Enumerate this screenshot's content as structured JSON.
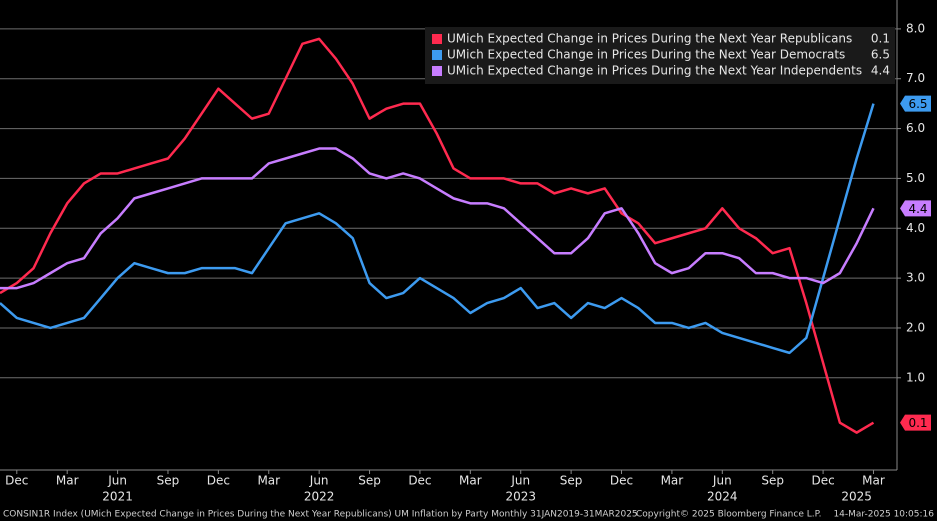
{
  "chart_data": {
    "type": "line",
    "xlim": [
      0,
      53.4
    ],
    "ylim": [
      -0.85,
      8.58
    ],
    "yticks": [
      {
        "value": 1,
        "label": "1.0"
      },
      {
        "value": 2,
        "label": "2.0"
      },
      {
        "value": 3,
        "label": "3.0"
      },
      {
        "value": 4,
        "label": "4.0"
      },
      {
        "value": 5,
        "label": "5.0"
      },
      {
        "value": 6,
        "label": "6.0"
      },
      {
        "value": 7,
        "label": "7.0"
      },
      {
        "value": 8,
        "label": "8.0"
      }
    ],
    "xticks": [
      {
        "value": 1,
        "label": "Dec"
      },
      {
        "value": 4,
        "label": "Mar"
      },
      {
        "value": 7,
        "label": "Jun"
      },
      {
        "value": 10,
        "label": "Sep"
      },
      {
        "value": 13,
        "label": "Dec"
      },
      {
        "value": 16,
        "label": "Mar"
      },
      {
        "value": 19,
        "label": "Jun"
      },
      {
        "value": 22,
        "label": "Sep"
      },
      {
        "value": 25,
        "label": "Dec"
      },
      {
        "value": 28,
        "label": "Mar"
      },
      {
        "value": 31,
        "label": "Jun"
      },
      {
        "value": 34,
        "label": "Sep"
      },
      {
        "value": 37,
        "label": "Dec"
      },
      {
        "value": 40,
        "label": "Mar"
      },
      {
        "value": 43,
        "label": "Jun"
      },
      {
        "value": 46,
        "label": "Sep"
      },
      {
        "value": 49,
        "label": "Dec"
      },
      {
        "value": 52,
        "label": "Mar"
      }
    ],
    "year_labels": [
      {
        "value": 7,
        "label": "2021"
      },
      {
        "value": 19,
        "label": "2022"
      },
      {
        "value": 31,
        "label": "2023"
      },
      {
        "value": 43,
        "label": "2024"
      },
      {
        "value": 51,
        "label": "2025"
      }
    ],
    "grid": true,
    "legend": "top-right",
    "series": [
      {
        "name": "UMich Expected Change in Prices During the Next Year Republicans",
        "color": "#ff2a4f",
        "values": [
          2.7,
          2.9,
          3.2,
          3.9,
          4.5,
          4.9,
          5.1,
          5.1,
          5.2,
          5.3,
          5.4,
          5.8,
          6.3,
          6.8,
          6.5,
          6.2,
          6.3,
          7.0,
          7.7,
          7.8,
          7.4,
          6.9,
          6.2,
          6.4,
          6.5,
          6.5,
          5.9,
          5.2,
          5.0,
          5.0,
          5.0,
          4.9,
          4.9,
          4.7,
          4.8,
          4.7,
          4.8,
          4.3,
          4.1,
          3.7,
          3.8,
          3.9,
          4.0,
          4.4,
          4.0,
          3.8,
          3.5,
          3.6,
          2.5,
          1.3,
          0.1,
          -0.1,
          0.1
        ]
      },
      {
        "name": "UMich Expected Change in Prices During the Next Year Democrats",
        "color": "#3d9bf0",
        "values": [
          2.5,
          2.2,
          2.1,
          2.0,
          2.1,
          2.2,
          2.6,
          3.0,
          3.3,
          3.2,
          3.1,
          3.1,
          3.2,
          3.2,
          3.2,
          3.1,
          3.6,
          4.1,
          4.2,
          4.3,
          4.1,
          3.8,
          2.9,
          2.6,
          2.7,
          3.0,
          2.8,
          2.6,
          2.3,
          2.5,
          2.6,
          2.8,
          2.4,
          2.5,
          2.2,
          2.5,
          2.4,
          2.6,
          2.4,
          2.1,
          2.1,
          2.0,
          2.1,
          1.9,
          1.8,
          1.7,
          1.6,
          1.5,
          1.8,
          3.0,
          4.2,
          5.4,
          6.5
        ]
      },
      {
        "name": "UMich Expected Change in Prices During the Next Year Independents",
        "color": "#c77dff",
        "values": [
          2.8,
          2.8,
          2.9,
          3.1,
          3.3,
          3.4,
          3.9,
          4.2,
          4.6,
          4.7,
          4.8,
          4.9,
          5.0,
          5.0,
          5.0,
          5.0,
          5.3,
          5.4,
          5.5,
          5.6,
          5.6,
          5.4,
          5.1,
          5.0,
          5.1,
          5.0,
          4.8,
          4.6,
          4.5,
          4.5,
          4.4,
          4.1,
          3.8,
          3.5,
          3.5,
          3.8,
          4.3,
          4.4,
          3.9,
          3.3,
          3.1,
          3.2,
          3.5,
          3.5,
          3.4,
          3.1,
          3.1,
          3.0,
          3.0,
          2.9,
          3.1,
          3.7,
          4.4
        ]
      }
    ],
    "footer": {
      "left": "CONSIN1R Index (UMich Expected Change in Prices During the Next Year Republicans) UM Inflation by Party  Monthly 31JAN2019-31MAR2025",
      "copyright": "Copyright© 2025 Bloomberg Finance L.P.",
      "timestamp": "14-Mar-2025 10:05:16"
    }
  }
}
